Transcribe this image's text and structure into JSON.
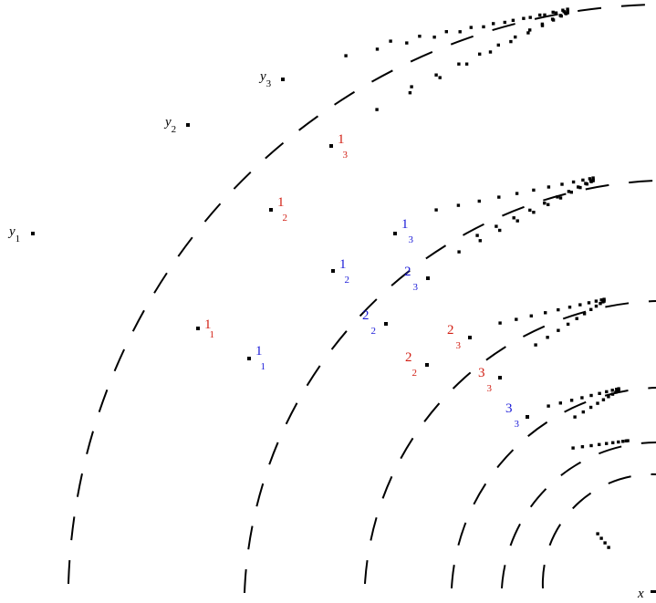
{
  "colors": {
    "background": "#ffffff",
    "ink": "#000000",
    "red_label": "#d21f14",
    "blue_label": "#1b1bd8"
  },
  "axis_label": "x",
  "y_labels": [
    {
      "main": "y",
      "sub": "1"
    },
    {
      "main": "y",
      "sub": "2"
    },
    {
      "main": "y",
      "sub": "3"
    }
  ],
  "red_labels": [
    {
      "main": "1",
      "sub": "1"
    },
    {
      "main": "1",
      "sub": "2"
    },
    {
      "main": "1",
      "sub": "3"
    },
    {
      "main": "2",
      "sub": "2"
    },
    {
      "main": "2",
      "sub": "3"
    },
    {
      "main": "3",
      "sub": "3"
    }
  ],
  "blue_labels": [
    {
      "main": "1",
      "sub": "1"
    },
    {
      "main": "1",
      "sub": "2"
    },
    {
      "main": "1",
      "sub": "3"
    },
    {
      "main": "2",
      "sub": "2"
    },
    {
      "main": "2",
      "sub": "3"
    },
    {
      "main": "3",
      "sub": "3"
    }
  ],
  "arc_count": 6,
  "curve_style": "dashed"
}
